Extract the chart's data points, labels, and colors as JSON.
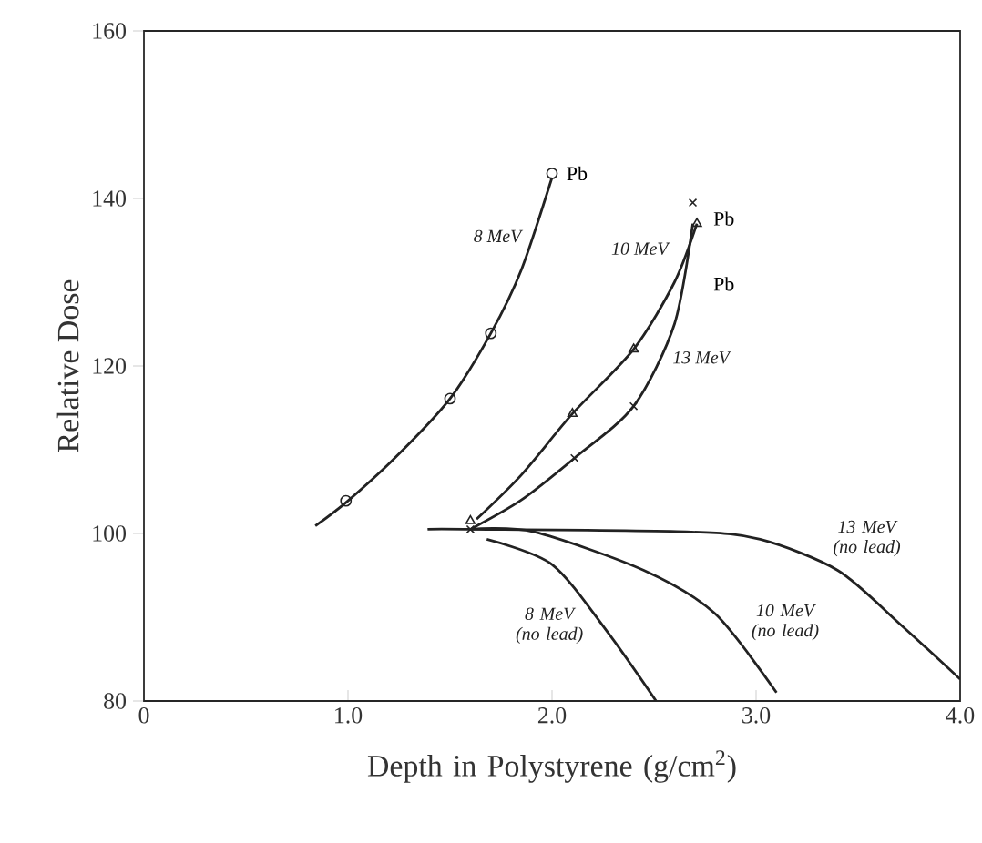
{
  "chart_data": {
    "type": "line",
    "xlabel": "Depth in Polystyrene (g/cm$^{2}$)",
    "ylabel": "Relative Dose",
    "xlim": [
      0,
      4
    ],
    "ylim": [
      80,
      160
    ],
    "xticks": [
      0,
      {
        "value": 1,
        "label": "1.0"
      },
      {
        "value": 2,
        "label": "2.0"
      },
      {
        "value": 3,
        "label": "3.0"
      },
      {
        "value": 4,
        "label": "4.0"
      }
    ],
    "yticks": [
      80,
      100,
      120,
      140,
      160
    ],
    "grid": false,
    "legend": false,
    "marker": "none",
    "series": [
      {
        "name": "8 MeV",
        "color": "#222222",
        "x": [
          0.84,
          1.0,
          1.25,
          1.5,
          1.7,
          1.85,
          2.0
        ],
        "values": [
          100.9,
          103.9,
          109.5,
          116.1,
          123.9,
          131.5,
          142.5
        ]
      },
      {
        "name": "10 MeV",
        "color": "#222222",
        "x": [
          1.63,
          1.85,
          2.1,
          2.4,
          2.6,
          2.71
        ],
        "values": [
          101.7,
          107,
          114.3,
          122,
          130,
          137
        ]
      },
      {
        "name": "13 MeV",
        "color": "#222222",
        "x": [
          1.6,
          1.85,
          2.11,
          2.4,
          2.6,
          2.69
        ],
        "values": [
          100.5,
          104,
          109,
          115.2,
          125,
          137
        ]
      },
      {
        "name": "8 MeV (no lead)",
        "color": "#222222",
        "x": [
          1.68,
          2.0,
          2.27,
          2.51
        ],
        "values": [
          99.3,
          96.3,
          88.3,
          80
        ]
      },
      {
        "name": "10 MeV (no lead)",
        "color": "#222222",
        "x": [
          1.6,
          1.91,
          2.45,
          2.8,
          3.1
        ],
        "values": [
          100.5,
          100.2,
          95.6,
          90.4,
          81
        ]
      },
      {
        "name": "13 MeV (no lead)",
        "color": "#222222",
        "x": [
          1.39,
          1.6,
          2.66,
          3.02,
          3.4,
          3.7,
          4.0
        ],
        "values": [
          100.5,
          100.5,
          100.2,
          99.3,
          95.6,
          89.3,
          82.6
        ]
      },
      {
        "type": "scatter",
        "marker": "circle",
        "color": "#222222",
        "x": [
          0.99,
          1.5,
          1.7,
          2.0
        ],
        "values": [
          103.9,
          116.1,
          123.9,
          143
        ]
      },
      {
        "type": "scatter",
        "marker": "triangle",
        "color": "#222222",
        "x": [
          1.6,
          2.1,
          2.4,
          2.71
        ],
        "values": [
          101.5,
          114.3,
          122,
          137
        ]
      },
      {
        "type": "scatter",
        "marker": "cross",
        "color": "#222222",
        "x": [
          1.6,
          2.11,
          2.4,
          2.69
        ],
        "values": [
          100.5,
          109,
          115.2,
          139.5
        ]
      }
    ],
    "annotations": [
      "Pb",
      "Pb",
      "Pb"
    ]
  }
}
